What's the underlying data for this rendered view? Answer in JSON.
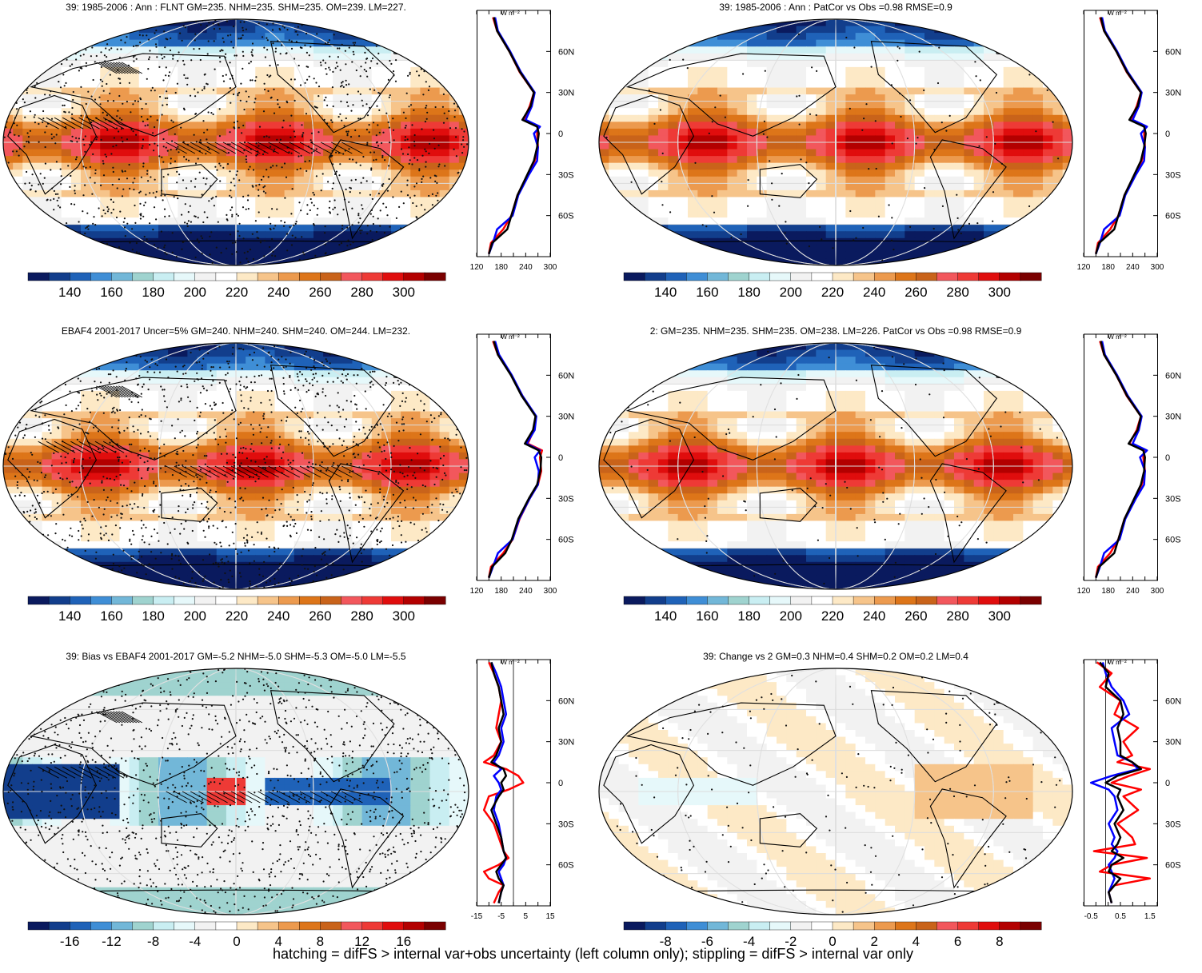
{
  "footer": "hatching = difFS > internal var+obs uncertainty (left column only); stippling = difFS > internal var only",
  "colors": {
    "diverging_scale": [
      "#0a1a5e",
      "#123e8c",
      "#1f62b8",
      "#3f8ed6",
      "#72b7d8",
      "#9fd3cf",
      "#c9eef2",
      "#e6f8fa",
      "#f2f2f2",
      "#ffffff",
      "#fde9c6",
      "#f6c48a",
      "#ec9a4e",
      "#dd7519",
      "#c9631a",
      "#f2575c",
      "#ee3a36",
      "#e00d0d",
      "#b30000",
      "#7a0000"
    ],
    "zonal_model": "#000000",
    "zonal_obs": "#ff0000",
    "zonal_other": "#0000ff"
  },
  "profile_unit": "W m⁻²",
  "lat_labels": [
    "60N",
    "30N",
    "0",
    "30S",
    "60S"
  ],
  "panels": [
    {
      "id": "model-mean",
      "title": "39: 1985-2006 : Ann : FLNT GM=235. NHM=235. SHM=235. OM=239. LM=227.",
      "hatching": true,
      "colorbar_labels": [
        "140",
        "160",
        "180",
        "200",
        "220",
        "240",
        "260",
        "280",
        "300"
      ],
      "profile_ticks": [
        "120",
        "180",
        "240",
        "300"
      ]
    },
    {
      "id": "model-mean-patcor",
      "title": "39: 1985-2006 : Ann : PatCor vs Obs =0.98 RMSE=0.9",
      "hatching": false,
      "colorbar_labels": [
        "140",
        "160",
        "180",
        "200",
        "220",
        "240",
        "260",
        "280",
        "300"
      ],
      "profile_ticks": [
        "120",
        "180",
        "240",
        "300"
      ]
    },
    {
      "id": "observations",
      "title": "EBAF4 2001-2017 Uncer=5% GM=240. NHM=240. SHM=240. OM=244. LM=232.",
      "hatching": true,
      "colorbar_labels": [
        "140",
        "160",
        "180",
        "200",
        "220",
        "240",
        "260",
        "280",
        "300"
      ],
      "profile_ticks": [
        "120",
        "180",
        "240",
        "300"
      ]
    },
    {
      "id": "reference-model",
      "title": "2: GM=235. NHM=235. SHM=235. OM=238. LM=226. PatCor vs Obs =0.98 RMSE=0.9",
      "hatching": false,
      "colorbar_labels": [
        "140",
        "160",
        "180",
        "200",
        "220",
        "240",
        "260",
        "280",
        "300"
      ],
      "profile_ticks": [
        "120",
        "180",
        "240",
        "300"
      ]
    },
    {
      "id": "bias",
      "title": "39: Bias vs EBAF4 2001-2017 GM=-5.2 NHM=-5.0 SHM=-5.3 OM=-5.0 LM=-5.5",
      "hatching": true,
      "colorbar_labels": [
        "-16",
        "-12",
        "-8",
        "-4",
        "0",
        "4",
        "8",
        "12",
        "16"
      ],
      "profile_ticks": [
        "-15",
        "-5",
        "5",
        "15"
      ]
    },
    {
      "id": "change",
      "title": "39: Change vs 2 GM=0.3 NHM=0.4 SHM=0.2 OM=0.2 LM=0.4",
      "hatching": false,
      "colorbar_labels": [
        "-8",
        "-6",
        "-4",
        "-2",
        "0",
        "2",
        "4",
        "6",
        "8"
      ],
      "profile_ticks": [
        "-0.5",
        "0.5",
        "1.5"
      ]
    }
  ],
  "chart_data": [
    {
      "type": "line",
      "panel": "model-mean",
      "x_unit": "W m-2",
      "y_ticks": [
        "60N",
        "30N",
        "0",
        "30S",
        "60S"
      ],
      "xlim": [
        120,
        300
      ],
      "ylim": [
        -90,
        90
      ],
      "series": [
        {
          "lat": [
            85,
            75,
            60,
            45,
            30,
            20,
            10,
            5,
            0,
            -10,
            -20,
            -30,
            -45,
            -60,
            -70,
            -80,
            -88
          ],
          "values": [
            160,
            170,
            200,
            225,
            260,
            250,
            235,
            270,
            268,
            270,
            262,
            245,
            220,
            205,
            185,
            155,
            150
          ]
        },
        {
          "lat": [
            85,
            75,
            60,
            45,
            30,
            20,
            10,
            5,
            0,
            -10,
            -20,
            -30,
            -45,
            -60,
            -70,
            -80,
            -88
          ],
          "values": [
            165,
            172,
            202,
            228,
            262,
            255,
            240,
            275,
            260,
            270,
            268,
            248,
            222,
            208,
            170,
            160,
            150
          ]
        },
        {
          "lat": [
            85,
            75,
            60,
            45,
            30,
            20,
            10,
            5,
            0,
            -10,
            -20,
            -30,
            -45,
            -60,
            -70,
            -80,
            -88
          ],
          "values": [
            162,
            170,
            200,
            226,
            260,
            252,
            232,
            268,
            272,
            268,
            260,
            244,
            220,
            205,
            195,
            158,
            150
          ]
        }
      ]
    },
    {
      "type": "line",
      "panel": "model-mean-patcor",
      "x_unit": "W m-2",
      "y_ticks": [
        "60N",
        "30N",
        "0",
        "30S",
        "60S"
      ],
      "xlim": [
        120,
        300
      ],
      "ylim": [
        -90,
        90
      ],
      "series": [
        {
          "lat": [
            85,
            75,
            60,
            45,
            30,
            20,
            10,
            5,
            0,
            -10,
            -20,
            -30,
            -45,
            -60,
            -70,
            -80,
            -88
          ],
          "values": [
            160,
            170,
            200,
            225,
            260,
            250,
            235,
            270,
            268,
            270,
            262,
            245,
            220,
            205,
            185,
            155,
            150
          ]
        },
        {
          "lat": [
            85,
            75,
            60,
            45,
            30,
            20,
            10,
            5,
            0,
            -10,
            -20,
            -30,
            -45,
            -60,
            -70,
            -80,
            -88
          ],
          "values": [
            165,
            172,
            202,
            228,
            262,
            255,
            240,
            275,
            260,
            270,
            268,
            248,
            222,
            208,
            170,
            160,
            150
          ]
        },
        {
          "lat": [
            85,
            75,
            60,
            45,
            30,
            20,
            10,
            5,
            0,
            -10,
            -20,
            -30,
            -45,
            -60,
            -70,
            -80,
            -88
          ],
          "values": [
            162,
            170,
            200,
            226,
            260,
            252,
            232,
            268,
            272,
            268,
            260,
            244,
            220,
            205,
            195,
            158,
            150
          ]
        }
      ]
    },
    {
      "type": "line",
      "panel": "observations",
      "x_unit": "W m-2",
      "y_ticks": [
        "60N",
        "30N",
        "0",
        "30S",
        "60S"
      ],
      "xlim": [
        120,
        300
      ],
      "ylim": [
        -90,
        90
      ],
      "series": [
        {
          "lat": [
            85,
            75,
            60,
            45,
            30,
            20,
            10,
            5,
            0,
            -10,
            -20,
            -30,
            -45,
            -60,
            -70,
            -80,
            -88
          ],
          "values": [
            160,
            172,
            205,
            232,
            265,
            260,
            245,
            280,
            275,
            278,
            270,
            250,
            225,
            208,
            185,
            155,
            150
          ]
        },
        {
          "lat": [
            85,
            75,
            60,
            45,
            30,
            20,
            10,
            5,
            0,
            -10,
            -20,
            -30,
            -45,
            -60,
            -70,
            -80,
            -88
          ],
          "values": [
            165,
            175,
            206,
            232,
            266,
            262,
            242,
            275,
            262,
            272,
            270,
            250,
            224,
            208,
            172,
            160,
            150
          ]
        },
        {
          "lat": [
            85,
            75,
            60,
            45,
            30,
            20,
            10,
            5,
            0,
            -10,
            -20,
            -30,
            -45,
            -60,
            -70,
            -80,
            -88
          ],
          "values": [
            162,
            172,
            204,
            230,
            264,
            258,
            238,
            272,
            278,
            276,
            268,
            248,
            222,
            206,
            190,
            158,
            150
          ]
        }
      ]
    },
    {
      "type": "line",
      "panel": "reference-model",
      "x_unit": "W m-2",
      "y_ticks": [
        "60N",
        "30N",
        "0",
        "30S",
        "60S"
      ],
      "xlim": [
        120,
        300
      ],
      "ylim": [
        -90,
        90
      ],
      "series": [
        {
          "lat": [
            85,
            75,
            60,
            45,
            30,
            20,
            10,
            5,
            0,
            -10,
            -20,
            -30,
            -45,
            -60,
            -70,
            -80,
            -88
          ],
          "values": [
            160,
            170,
            200,
            225,
            260,
            250,
            232,
            268,
            266,
            270,
            262,
            245,
            220,
            205,
            185,
            155,
            150
          ]
        },
        {
          "lat": [
            85,
            75,
            60,
            45,
            30,
            20,
            10,
            5,
            0,
            -10,
            -20,
            -30,
            -45,
            -60,
            -70,
            -80,
            -88
          ],
          "values": [
            165,
            172,
            202,
            228,
            262,
            255,
            240,
            275,
            258,
            270,
            268,
            248,
            222,
            208,
            170,
            160,
            150
          ]
        },
        {
          "lat": [
            85,
            75,
            60,
            45,
            30,
            20,
            10,
            5,
            0,
            -10,
            -20,
            -30,
            -45,
            -60,
            -70,
            -80,
            -88
          ],
          "values": [
            162,
            170,
            200,
            226,
            260,
            252,
            230,
            266,
            270,
            268,
            260,
            244,
            220,
            205,
            195,
            158,
            150
          ]
        }
      ]
    },
    {
      "type": "line",
      "panel": "bias",
      "x_unit": "W m-2",
      "y_ticks": [
        "60N",
        "30N",
        "0",
        "30S",
        "60S"
      ],
      "xlim": [
        -15,
        15
      ],
      "ylim": [
        -90,
        90
      ],
      "series": [
        {
          "lat": [
            88,
            80,
            70,
            60,
            50,
            40,
            30,
            20,
            15,
            10,
            5,
            0,
            -5,
            -10,
            -20,
            -30,
            -40,
            -50,
            -55,
            -60,
            -65,
            -70,
            -75,
            -80,
            -88
          ],
          "values": [
            -10,
            -8,
            -6,
            -5,
            -6,
            -7,
            -5,
            -8,
            -12,
            -3,
            2,
            4,
            -2,
            -10,
            -12,
            -8,
            -6,
            -4,
            -2,
            -6,
            -12,
            -10,
            -4,
            -6,
            -8
          ]
        },
        {
          "lat": [
            88,
            80,
            70,
            60,
            50,
            40,
            30,
            20,
            15,
            10,
            5,
            0,
            -5,
            -10,
            -20,
            -30,
            -40,
            -50,
            -55,
            -60,
            -65,
            -70,
            -75,
            -80,
            -88
          ],
          "values": [
            -9,
            -7,
            -5,
            -4,
            -3,
            -5,
            -4,
            -6,
            -8,
            -5,
            -8,
            -6,
            -5,
            -7,
            -8,
            -6,
            -5,
            -4,
            -3,
            -4,
            -6,
            -5,
            -4,
            -5,
            -6
          ]
        },
        {
          "lat": [
            88,
            80,
            70,
            60,
            50,
            40,
            30,
            20,
            15,
            10,
            5,
            0,
            -5,
            -10,
            -20,
            -30,
            -40,
            -50,
            -55,
            -60,
            -65,
            -70,
            -75,
            -80,
            -88
          ],
          "values": [
            -9,
            -8,
            -6,
            -5,
            -4,
            -6,
            -5,
            -7,
            -9,
            -4,
            -3,
            -5,
            -4,
            -6,
            -9,
            -7,
            -5,
            -4,
            -3,
            -5,
            -7,
            -6,
            -4,
            -5,
            -6
          ]
        }
      ]
    },
    {
      "type": "line",
      "panel": "change",
      "x_unit": "W m-2",
      "y_ticks": [
        "60N",
        "30N",
        "0",
        "30S",
        "60S"
      ],
      "xlim": [
        -0.75,
        1.75
      ],
      "ylim": [
        -90,
        90
      ],
      "series": [
        {
          "lat": [
            88,
            80,
            70,
            60,
            50,
            40,
            30,
            20,
            15,
            10,
            5,
            0,
            -5,
            -10,
            -20,
            -30,
            -40,
            -45,
            -50,
            -55,
            -60,
            -65,
            -70,
            -75,
            -80,
            -88
          ],
          "values": [
            -0.3,
            0.2,
            -0.2,
            0.5,
            0.3,
            1.1,
            0.6,
            0.9,
            0.4,
            1.5,
            0.8,
            0.2,
            1.2,
            0.6,
            1.1,
            0.4,
            0.9,
            1.0,
            -0.4,
            1.4,
            0.2,
            -0.2,
            1.5,
            0.3,
            0.1,
            0.2
          ]
        },
        {
          "lat": [
            88,
            80,
            70,
            60,
            50,
            40,
            30,
            20,
            15,
            10,
            5,
            0,
            -5,
            -10,
            -20,
            -30,
            -40,
            -45,
            -50,
            -55,
            -60,
            -65,
            -70,
            -75,
            -80,
            -88
          ],
          "values": [
            -0.1,
            0.0,
            0.2,
            0.6,
            0.8,
            0.2,
            0.3,
            0.4,
            0.9,
            1.1,
            0.2,
            -0.5,
            0.1,
            0.3,
            0.4,
            0.1,
            0.3,
            0.2,
            0.4,
            0.3,
            0.1,
            0.2,
            0.3,
            0.2,
            0.1,
            0.2
          ]
        },
        {
          "lat": [
            88,
            80,
            70,
            60,
            50,
            40,
            30,
            20,
            15,
            10,
            5,
            0,
            -5,
            -10,
            -20,
            -30,
            -40,
            -45,
            -50,
            -55,
            -60,
            -65,
            -70,
            -75,
            -80,
            -88
          ],
          "values": [
            -0.2,
            0.1,
            0.0,
            0.5,
            0.6,
            0.4,
            0.5,
            0.5,
            0.9,
            1.2,
            0.4,
            0.0,
            0.5,
            0.4,
            0.6,
            0.3,
            0.5,
            0.4,
            0.2,
            0.6,
            0.2,
            0.1,
            0.5,
            0.3,
            0.1,
            0.2
          ]
        }
      ]
    }
  ]
}
